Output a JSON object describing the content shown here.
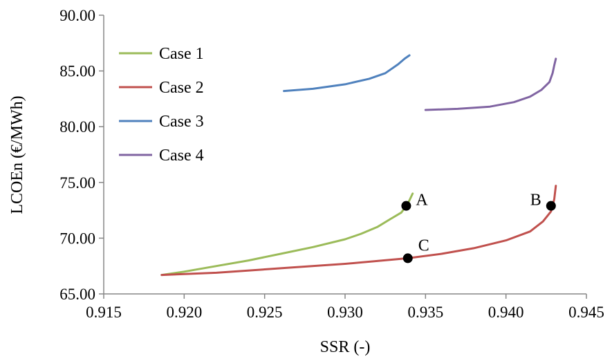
{
  "chart_data": {
    "type": "line",
    "title": "",
    "xlabel": "SSR (-)",
    "ylabel": "LCOEn (€/MWh)",
    "xlim": [
      0.915,
      0.945
    ],
    "ylim": [
      65.0,
      90.0
    ],
    "x_ticks": [
      "0.915",
      "0.920",
      "0.925",
      "0.930",
      "0.935",
      "0.940",
      "0.945"
    ],
    "y_ticks": [
      "65.00",
      "70.00",
      "75.00",
      "80.00",
      "85.00",
      "90.00"
    ],
    "grid": false,
    "legend_position": "top-left",
    "series": [
      {
        "name": "Case 1",
        "color": "#9bbb59",
        "points": [
          [
            0.9186,
            66.7
          ],
          [
            0.92,
            67.0
          ],
          [
            0.922,
            67.5
          ],
          [
            0.924,
            68.0
          ],
          [
            0.926,
            68.6
          ],
          [
            0.928,
            69.2
          ],
          [
            0.93,
            69.9
          ],
          [
            0.931,
            70.4
          ],
          [
            0.932,
            71.0
          ],
          [
            0.9328,
            71.7
          ],
          [
            0.9335,
            72.3
          ],
          [
            0.9338,
            72.9
          ],
          [
            0.934,
            73.4
          ],
          [
            0.9342,
            74.0
          ]
        ]
      },
      {
        "name": "Case 2",
        "color": "#c0504d",
        "points": [
          [
            0.9186,
            66.7
          ],
          [
            0.922,
            66.9
          ],
          [
            0.926,
            67.3
          ],
          [
            0.93,
            67.7
          ],
          [
            0.932,
            67.95
          ],
          [
            0.9339,
            68.2
          ],
          [
            0.936,
            68.6
          ],
          [
            0.938,
            69.1
          ],
          [
            0.94,
            69.8
          ],
          [
            0.9415,
            70.6
          ],
          [
            0.9423,
            71.5
          ],
          [
            0.9428,
            72.4
          ],
          [
            0.943,
            73.5
          ],
          [
            0.9431,
            74.7
          ]
        ]
      },
      {
        "name": "Case 3",
        "color": "#4f81bd",
        "points": [
          [
            0.9262,
            83.2
          ],
          [
            0.928,
            83.4
          ],
          [
            0.93,
            83.8
          ],
          [
            0.9315,
            84.3
          ],
          [
            0.9325,
            84.8
          ],
          [
            0.9333,
            85.6
          ],
          [
            0.9337,
            86.1
          ],
          [
            0.934,
            86.4
          ]
        ]
      },
      {
        "name": "Case 4",
        "color": "#8064a2",
        "points": [
          [
            0.935,
            81.5
          ],
          [
            0.937,
            81.6
          ],
          [
            0.939,
            81.8
          ],
          [
            0.9405,
            82.2
          ],
          [
            0.9415,
            82.7
          ],
          [
            0.9422,
            83.3
          ],
          [
            0.9427,
            84.0
          ],
          [
            0.9429,
            84.8
          ],
          [
            0.943,
            85.5
          ],
          [
            0.9431,
            86.1
          ]
        ]
      }
    ],
    "annotations": [
      {
        "label": "A",
        "x": 0.9338,
        "y": 72.9,
        "label_side": "right"
      },
      {
        "label": "B",
        "x": 0.9428,
        "y": 72.9,
        "label_side": "left"
      },
      {
        "label": "C",
        "x": 0.9339,
        "y": 68.2,
        "label_side": "upper-right"
      }
    ]
  }
}
